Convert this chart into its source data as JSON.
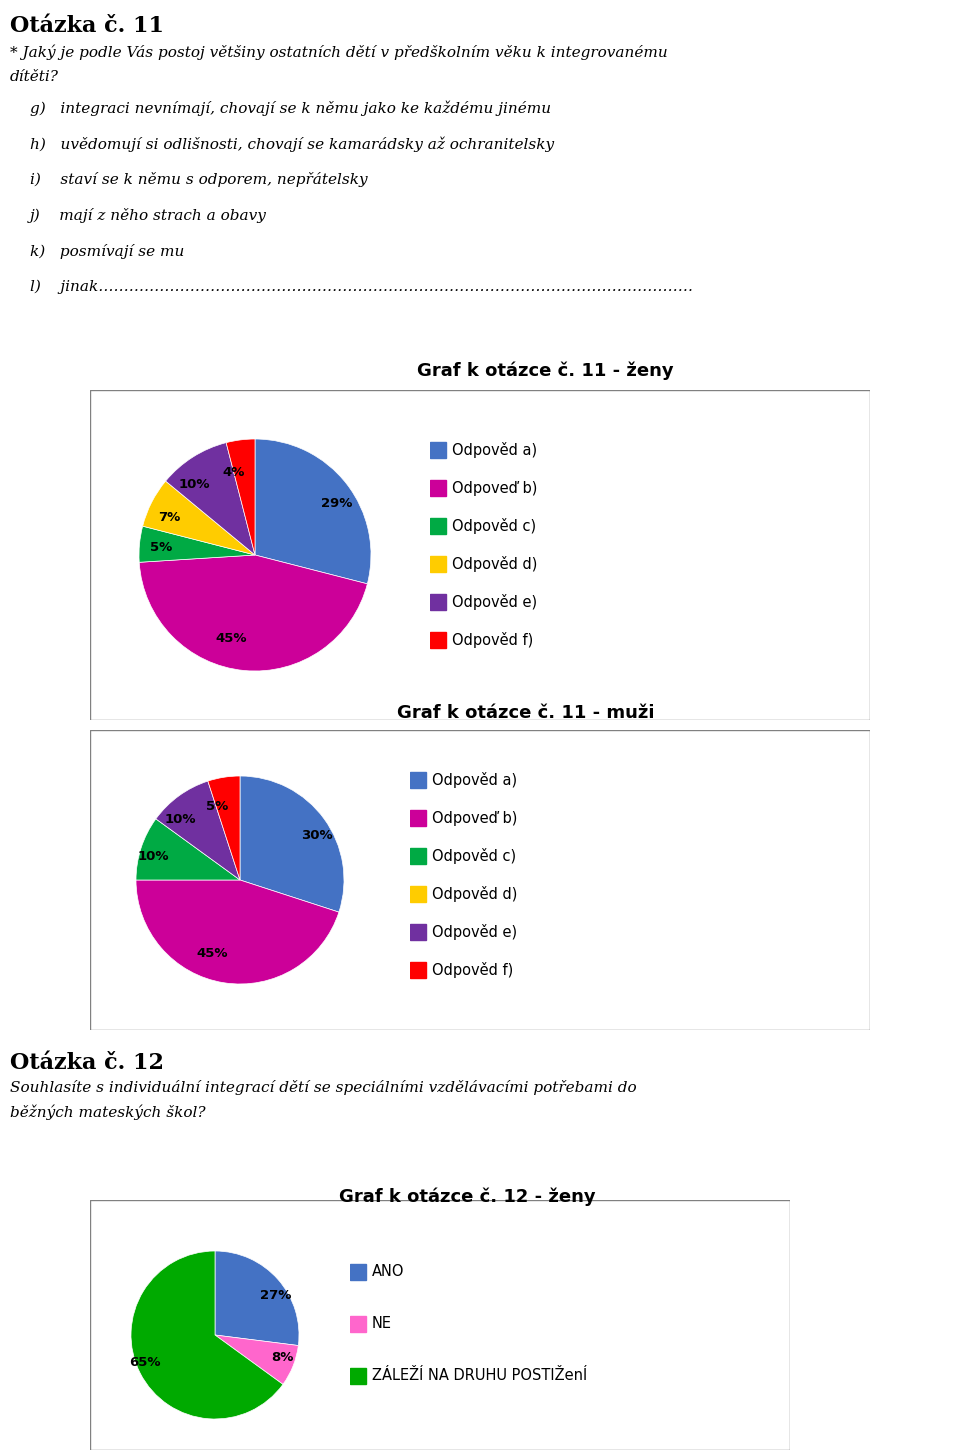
{
  "title_q11": "Otázka č. 11",
  "question_q11_line1": "* Jaký je podle Vás postoj většiny ostatních dětí v předškolním věku k integrovanému",
  "question_q11_line2": "dítěti?",
  "options_q11": [
    "g)   integraci nevnímají, chovají se k němu jako ke každému jinému",
    "h)   uvědomují si odlišnosti, chovají se kamarádsky až ochranitelsky",
    "i)    staví se k němu s odporem, nepřátelsky",
    "j)    mají z něho strach a obavy",
    "k)   posmívají se mu",
    "l)    jinak………………………………………………………………………………………………………"
  ],
  "chart1_title": "Graf k otázce č. 11 - ženy",
  "chart1_values": [
    29,
    45,
    5,
    7,
    10,
    4
  ],
  "chart1_labels": [
    "29%",
    "45%",
    "5%",
    "7%",
    "10%",
    "4%"
  ],
  "chart1_colors": [
    "#4472C4",
    "#CC0099",
    "#00AA44",
    "#FFCC00",
    "#7030A0",
    "#FF0000"
  ],
  "chart1_legend": [
    "Odpověd a)",
    "Odpoveď b)",
    "Odpověd c)",
    "Odpověd d)",
    "Odpověd e)",
    "Odpověd f)"
  ],
  "chart2_title": "Graf k otázce č. 11 - muži",
  "chart2_values": [
    30,
    45,
    10,
    0,
    10,
    5
  ],
  "chart2_labels": [
    "30%",
    "45%",
    "10%",
    "",
    "10%",
    "5%"
  ],
  "chart2_colors": [
    "#4472C4",
    "#CC0099",
    "#00AA44",
    "#FFCC00",
    "#7030A0",
    "#FF0000"
  ],
  "chart2_legend": [
    "Odpověd a)",
    "Odpoveď b)",
    "Odpověd c)",
    "Odpověd d)",
    "Odpověd e)",
    "Odpověd f)"
  ],
  "title_q12": "Otázka č. 12",
  "question_q12_line1": "Souhlasíte s individuální integrací dětí se speciálními vzdělávacími potřebami do",
  "question_q12_line2": "běžných mateských škol?",
  "chart3_title": "Graf k otázce č. 12 - ženy",
  "chart3_values": [
    27,
    8,
    65
  ],
  "chart3_labels": [
    "27%",
    "8%",
    "65%"
  ],
  "chart3_colors": [
    "#4472C4",
    "#FF66CC",
    "#00AA00"
  ],
  "chart3_legend": [
    "ANO",
    "NE",
    "ZÁLEŽÍ NA DRUHU POSTIŽenÍ"
  ]
}
